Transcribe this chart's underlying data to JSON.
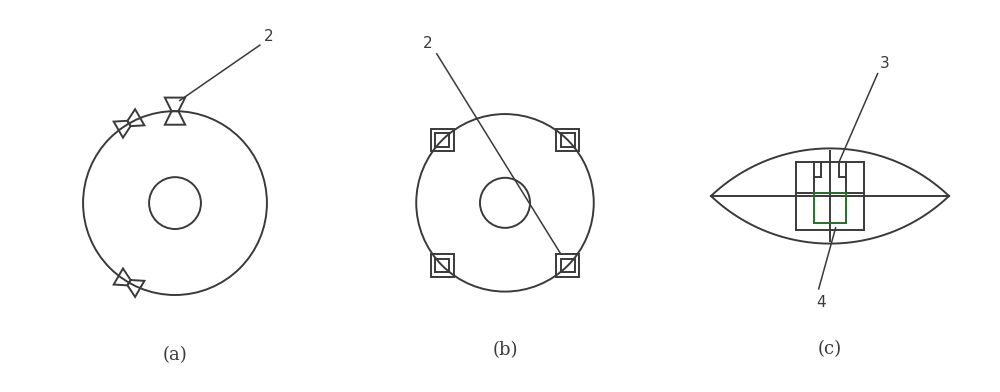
{
  "fig_width": 10.0,
  "fig_height": 3.92,
  "dpi": 100,
  "bg_color": "#ffffff",
  "line_color": "#3a3a3a",
  "green_color": "#2a6e2a",
  "label_a": "(a)",
  "label_b": "(b)",
  "label_c": "(c)",
  "label_2a": "2",
  "label_2b": "2",
  "label_3": "3",
  "label_4": "4",
  "circ_a_outer_r": 0.78,
  "circ_a_inner_r": 0.22,
  "circ_b_outer_r": 0.78,
  "circ_b_inner_r": 0.22,
  "thruster_angles_a": [
    0,
    210,
    330
  ],
  "thruster_angles_b": [
    45,
    135,
    225,
    315
  ]
}
